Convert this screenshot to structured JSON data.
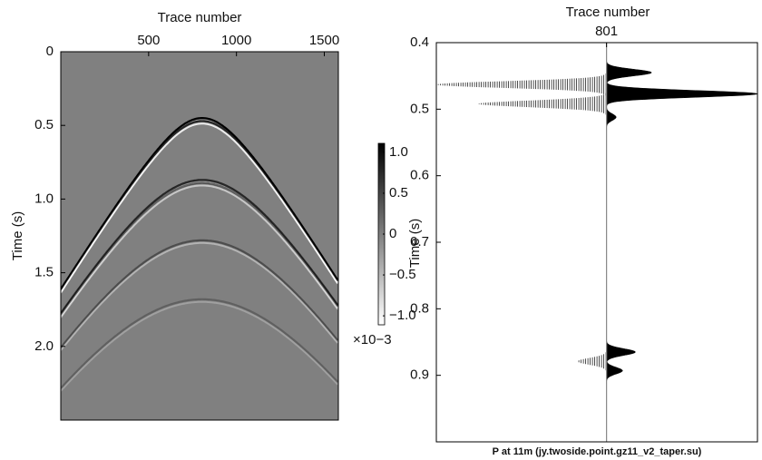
{
  "chart_data": [
    {
      "type": "image",
      "xlabel": "Trace number",
      "ylabel": "Time (s)",
      "xlim": [
        0,
        1580
      ],
      "xticks": [
        500,
        1000,
        1500
      ],
      "ylim": [
        0,
        2.5
      ],
      "yticks": [
        0,
        0.5,
        {
          "value": 1,
          "label": "1.0"
        },
        1.5,
        {
          "value": 2,
          "label": "2.0"
        }
      ],
      "background": "#808080",
      "apex_trace": 805,
      "events_t0": [
        0.45,
        0.47,
        0.87,
        0.89,
        1.28,
        1.68
      ],
      "colorbar": {
        "clim": [
          -1.11,
          1.11
        ],
        "ticks": [
          {
            "value": 1,
            "label": "1.0"
          },
          0.5,
          0,
          {
            "value": -0.5,
            "label": "−0.5"
          },
          {
            "value": -1,
            "label": "−1.0"
          }
        ],
        "multiplier": "×10−3"
      }
    },
    {
      "type": "wiggle",
      "title": "P at 11m (jy.twoside.point.gz11_v2_taper.su)",
      "xlabel": "Trace number",
      "ylabel": "Time (s)",
      "xlim": [
        800.47,
        801.47
      ],
      "xticks": [
        801
      ],
      "ylim": [
        0.4,
        1.0
      ],
      "yticks": [
        0.4,
        0.5,
        0.6,
        0.7,
        0.8,
        0.9
      ],
      "times": [
        0.445,
        0.463,
        0.477,
        0.492,
        0.512,
        0.865,
        0.879,
        0.893
      ],
      "amplitudes": [
        0.14,
        -0.53,
        0.47,
        -0.4,
        0.03,
        0.09,
        -0.09,
        0.05
      ]
    }
  ]
}
